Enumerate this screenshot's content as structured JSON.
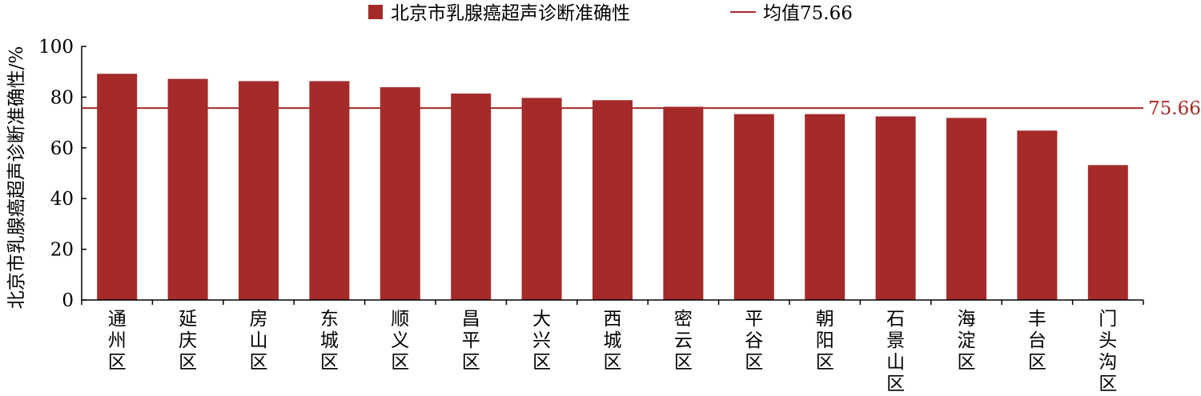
{
  "chart_data": {
    "type": "bar",
    "title": "",
    "ylabel": "北京市乳腺癌超声诊断准确性/%",
    "xlabel": "",
    "ylim": [
      0,
      100
    ],
    "yticks": [
      0,
      20,
      40,
      60,
      80,
      100
    ],
    "grid": false,
    "legend_position": "top-center",
    "categories": [
      "通州区",
      "延庆区",
      "房山区",
      "东城区",
      "顺义区",
      "昌平区",
      "大兴区",
      "西城区",
      "密云区",
      "平谷区",
      "朝阳区",
      "石景山区",
      "海淀区",
      "丰台区",
      "门头沟区"
    ],
    "series": [
      {
        "name": "北京市乳腺癌超声诊断准确性",
        "color": "#a52a2a",
        "values": [
          89.2,
          87.2,
          86.3,
          86.3,
          83.9,
          81.4,
          79.7,
          78.8,
          76.2,
          73.3,
          73.3,
          72.4,
          71.8,
          66.8,
          53.2
        ]
      }
    ],
    "reference_line": {
      "value": 75.66,
      "legend_label": "均值75.66",
      "label": "75.66",
      "color": "#a52a2a"
    }
  }
}
